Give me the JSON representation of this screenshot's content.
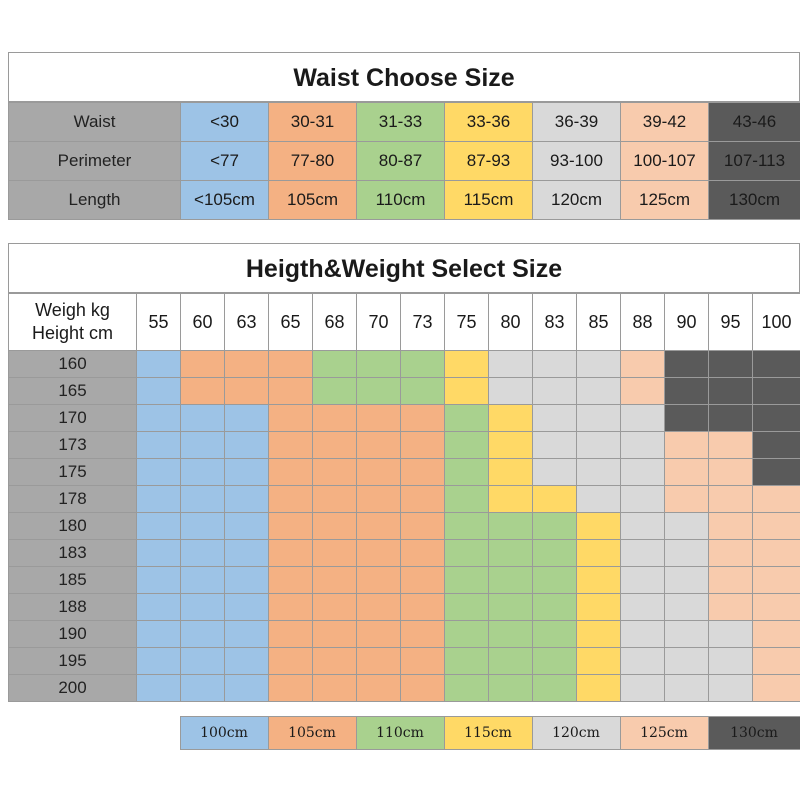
{
  "waist_table": {
    "title": "Waist Choose Size",
    "rows": [
      {
        "label": "Waist",
        "cells": [
          "<30",
          "30-31",
          "31-33",
          "33-36",
          "36-39",
          "39-42",
          "43-46"
        ]
      },
      {
        "label": "Perimeter",
        "cells": [
          "<77",
          "77-80",
          "80-87",
          "87-93",
          "93-100",
          "100-107",
          "107-113"
        ]
      },
      {
        "label": "Length",
        "cells": [
          "<105cm",
          "105cm",
          "110cm",
          "115cm",
          "120cm",
          "125cm",
          "130cm"
        ]
      }
    ],
    "column_colors": [
      "#9dc3e6",
      "#f4b183",
      "#a9d18e",
      "#ffd966",
      "#d9d9d9",
      "#f8cbad",
      "#5a5a5a"
    ]
  },
  "height_weight_table": {
    "title": "Heigth&Weight Select Size",
    "corner_line1": "Weigh kg",
    "corner_line2": "Height cm",
    "weights": [
      "55",
      "60",
      "63",
      "65",
      "68",
      "70",
      "73",
      "75",
      "80",
      "83",
      "85",
      "88",
      "90",
      "95",
      "100"
    ],
    "heights": [
      "160",
      "165",
      "170",
      "173",
      "175",
      "178",
      "180",
      "183",
      "185",
      "188",
      "190",
      "195",
      "200"
    ],
    "size_grid": [
      [
        "blue",
        "orange",
        "orange",
        "orange",
        "green",
        "green",
        "green",
        "yellow",
        "gray",
        "gray",
        "gray",
        "peach",
        "dark",
        "dark",
        "dark"
      ],
      [
        "blue",
        "orange",
        "orange",
        "orange",
        "green",
        "green",
        "green",
        "yellow",
        "gray",
        "gray",
        "gray",
        "peach",
        "dark",
        "dark",
        "dark"
      ],
      [
        "blue",
        "blue",
        "blue",
        "orange",
        "orange",
        "orange",
        "orange",
        "green",
        "yellow",
        "gray",
        "gray",
        "gray",
        "dark",
        "dark",
        "dark"
      ],
      [
        "blue",
        "blue",
        "blue",
        "orange",
        "orange",
        "orange",
        "orange",
        "green",
        "yellow",
        "gray",
        "gray",
        "gray",
        "peach",
        "peach",
        "dark"
      ],
      [
        "blue",
        "blue",
        "blue",
        "orange",
        "orange",
        "orange",
        "orange",
        "green",
        "yellow",
        "gray",
        "gray",
        "gray",
        "peach",
        "peach",
        "dark"
      ],
      [
        "blue",
        "blue",
        "blue",
        "orange",
        "orange",
        "orange",
        "orange",
        "green",
        "yellow",
        "yellow",
        "gray",
        "gray",
        "peach",
        "peach",
        "peach"
      ],
      [
        "blue",
        "blue",
        "blue",
        "orange",
        "orange",
        "orange",
        "orange",
        "green",
        "green",
        "green",
        "yellow",
        "gray",
        "gray",
        "peach",
        "peach"
      ],
      [
        "blue",
        "blue",
        "blue",
        "orange",
        "orange",
        "orange",
        "orange",
        "green",
        "green",
        "green",
        "yellow",
        "gray",
        "gray",
        "peach",
        "peach"
      ],
      [
        "blue",
        "blue",
        "blue",
        "orange",
        "orange",
        "orange",
        "orange",
        "green",
        "green",
        "green",
        "yellow",
        "gray",
        "gray",
        "peach",
        "peach"
      ],
      [
        "blue",
        "blue",
        "blue",
        "orange",
        "orange",
        "orange",
        "orange",
        "green",
        "green",
        "green",
        "yellow",
        "gray",
        "gray",
        "peach",
        "peach"
      ],
      [
        "blue",
        "blue",
        "blue",
        "orange",
        "orange",
        "orange",
        "orange",
        "green",
        "green",
        "green",
        "yellow",
        "gray",
        "gray",
        "gray",
        "peach"
      ],
      [
        "blue",
        "blue",
        "blue",
        "orange",
        "orange",
        "orange",
        "orange",
        "green",
        "green",
        "green",
        "yellow",
        "gray",
        "gray",
        "gray",
        "peach"
      ],
      [
        "blue",
        "blue",
        "blue",
        "orange",
        "orange",
        "orange",
        "orange",
        "green",
        "green",
        "green",
        "yellow",
        "gray",
        "gray",
        "gray",
        "peach"
      ]
    ]
  },
  "legend": [
    {
      "label": "100cm",
      "color": "blue"
    },
    {
      "label": "105cm",
      "color": "orange"
    },
    {
      "label": "110cm",
      "color": "green"
    },
    {
      "label": "115cm",
      "color": "yellow"
    },
    {
      "label": "120cm",
      "color": "gray"
    },
    {
      "label": "125cm",
      "color": "peach"
    },
    {
      "label": "130cm",
      "color": "dark"
    }
  ],
  "colors": {
    "blue": "#9dc3e6",
    "orange": "#f4b183",
    "green": "#a9d18e",
    "yellow": "#ffd966",
    "gray": "#d9d9d9",
    "peach": "#f8cbad",
    "dark": "#5a5a5a",
    "header_gray": "#a8a8a8"
  }
}
